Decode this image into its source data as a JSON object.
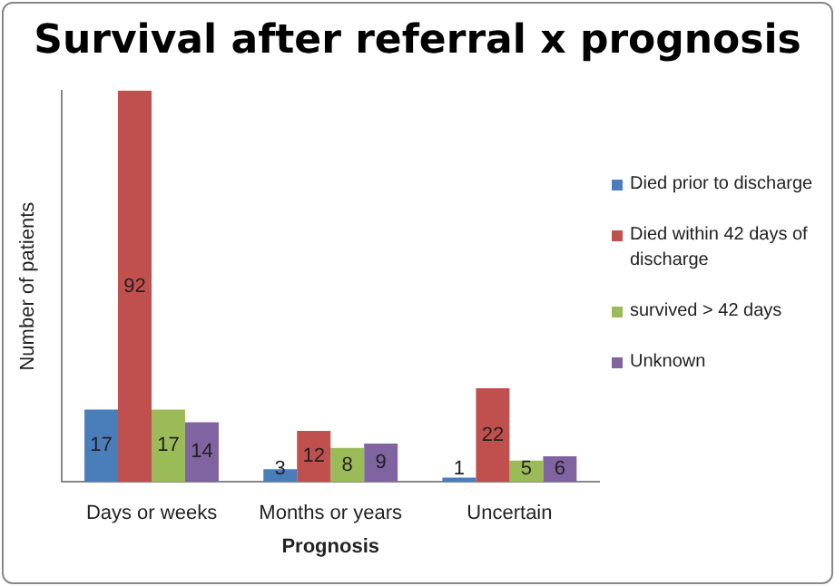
{
  "chart_data": {
    "type": "bar",
    "title": "Survival after referral x prognosis",
    "xlabel": "Prognosis",
    "ylabel": "Number of patients",
    "categories": [
      "Days or weeks",
      "Months or years",
      "Uncertain"
    ],
    "series": [
      {
        "name": "Died prior to discharge",
        "color": "#4a7ebb",
        "values": [
          17,
          3,
          1
        ]
      },
      {
        "name": "Died within 42 days of discharge",
        "color": "#c0504d",
        "values": [
          92,
          12,
          22
        ]
      },
      {
        "name": "survived > 42 days",
        "color": "#9bbb59",
        "values": [
          17,
          8,
          5
        ]
      },
      {
        "name": "Unknown",
        "color": "#8064a2",
        "values": [
          14,
          9,
          6
        ]
      }
    ],
    "data_labels": true,
    "legend": "right",
    "grid": false
  }
}
